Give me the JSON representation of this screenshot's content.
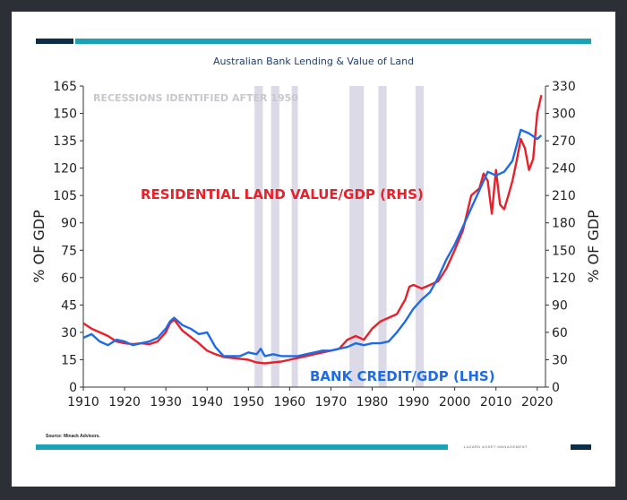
{
  "header": {
    "title": "Australian Bank Lending & Value of Land"
  },
  "source_note": "Source: Minack Advisors.",
  "footer_brand": "LAZARD ASSET MANAGEMENT",
  "colors": {
    "land": "#e8202a",
    "credit": "#1e6be6",
    "recession": "#dcdae6",
    "brand_dark": "#0c2d48",
    "brand_teal": "#1aa3b6"
  },
  "chart_data": {
    "type": "line",
    "title": "Australian Bank Lending & Value of Land",
    "xlabel": "",
    "ylabel": "% OF GDP",
    "ylabel_right": "% OF GDP",
    "xlim": [
      1910,
      2022
    ],
    "ylim": [
      0,
      165
    ],
    "ylim_right": [
      0,
      330
    ],
    "x_ticks": [
      1910,
      1920,
      1930,
      1940,
      1950,
      1960,
      1970,
      1980,
      1990,
      2000,
      2010,
      2020
    ],
    "y_ticks_left": [
      0,
      15,
      30,
      45,
      60,
      75,
      90,
      105,
      120,
      135,
      150,
      165
    ],
    "y_ticks_right": [
      0,
      30,
      60,
      90,
      120,
      150,
      180,
      210,
      240,
      270,
      300,
      330
    ],
    "recession_annotation": "RECESSIONS IDENTIFIED AFTER 1950",
    "recessions": [
      [
        1951.5,
        1953.5
      ],
      [
        1955.5,
        1957.5
      ],
      [
        1960.5,
        1962.0
      ],
      [
        1974.5,
        1978.0
      ],
      [
        1981.5,
        1983.5
      ],
      [
        1990.5,
        1992.5
      ]
    ],
    "series": [
      {
        "name": "RESIDENTIAL LAND VALUE/GDP (RHS)",
        "axis": "right",
        "color": "#e8202a",
        "x": [
          1910,
          1912,
          1914,
          1916,
          1918,
          1920,
          1922,
          1924,
          1926,
          1928,
          1930,
          1931,
          1932,
          1934,
          1936,
          1938,
          1940,
          1942,
          1944,
          1946,
          1948,
          1950,
          1952,
          1954,
          1956,
          1958,
          1960,
          1962,
          1964,
          1966,
          1968,
          1970,
          1972,
          1974,
          1976,
          1978,
          1980,
          1982,
          1984,
          1986,
          1988,
          1989,
          1990,
          1992,
          1994,
          1996,
          1998,
          2000,
          2002,
          2004,
          2006,
          2007,
          2008,
          2009,
          2010,
          2011,
          2012,
          2013,
          2014,
          2015,
          2016,
          2017,
          2018,
          2019,
          2020,
          2021
        ],
        "values": [
          70,
          64,
          60,
          56,
          50,
          48,
          47,
          48,
          47,
          50,
          60,
          70,
          74,
          62,
          55,
          48,
          40,
          36,
          33,
          32,
          31,
          30,
          27,
          26,
          27,
          28,
          30,
          32,
          34,
          36,
          38,
          40,
          42,
          52,
          56,
          52,
          64,
          72,
          76,
          80,
          96,
          110,
          112,
          108,
          112,
          116,
          130,
          150,
          172,
          210,
          218,
          234,
          226,
          190,
          238,
          200,
          195,
          210,
          226,
          248,
          272,
          262,
          238,
          250,
          300,
          320
        ]
      },
      {
        "name": "BANK CREDIT/GDP (LHS)",
        "axis": "left",
        "color": "#1e6be6",
        "x": [
          1910,
          1912,
          1914,
          1916,
          1918,
          1920,
          1922,
          1924,
          1926,
          1928,
          1930,
          1931,
          1932,
          1934,
          1936,
          1938,
          1940,
          1942,
          1944,
          1946,
          1948,
          1950,
          1952,
          1953,
          1954,
          1956,
          1958,
          1960,
          1962,
          1964,
          1966,
          1968,
          1970,
          1972,
          1974,
          1976,
          1978,
          1980,
          1982,
          1984,
          1986,
          1988,
          1990,
          1992,
          1994,
          1996,
          1998,
          2000,
          2002,
          2004,
          2006,
          2008,
          2010,
          2012,
          2014,
          2016,
          2018,
          2020,
          2021
        ],
        "values": [
          27,
          29,
          25,
          23,
          26,
          25,
          23,
          24,
          25,
          27,
          32,
          36,
          38,
          34,
          32,
          29,
          30,
          22,
          17,
          17,
          17,
          19,
          18,
          21,
          17,
          18,
          17,
          17,
          17,
          18,
          19,
          20,
          20,
          21,
          22,
          24,
          23,
          24,
          24,
          25,
          30,
          36,
          43,
          48,
          52,
          60,
          70,
          78,
          88,
          98,
          108,
          118,
          116,
          118,
          124,
          141,
          139,
          136,
          138
        ]
      }
    ]
  }
}
